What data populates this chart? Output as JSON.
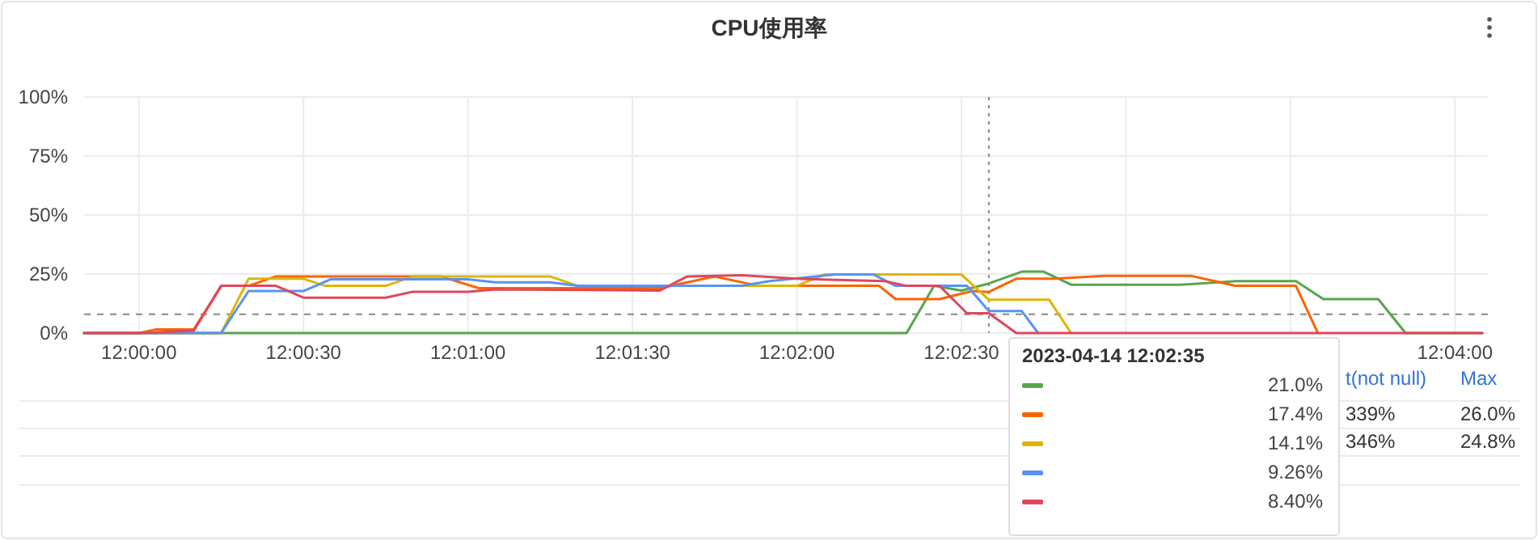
{
  "chart_data": {
    "type": "line",
    "title": "CPU使用率",
    "xlim": [
      "2023-04-14T11:59:50",
      "2023-04-14T12:04:06"
    ],
    "xticks": [
      {
        "value": "2023-04-14T12:00:00",
        "label": "12:00:00"
      },
      {
        "value": "2023-04-14T12:00:30",
        "label": "12:00:30"
      },
      {
        "value": "2023-04-14T12:01:00",
        "label": "12:01:00"
      },
      {
        "value": "2023-04-14T12:01:30",
        "label": "12:01:30"
      },
      {
        "value": "2023-04-14T12:02:00",
        "label": "12:02:00"
      },
      {
        "value": "2023-04-14T12:02:30",
        "label": "12:02:30"
      },
      {
        "value": "2023-04-14T12:03:00",
        "label": null
      },
      {
        "value": "2023-04-14T12:03:30",
        "label": null
      },
      {
        "value": "2023-04-14T12:04:00",
        "label": "12:04:00"
      }
    ],
    "ylim": [
      0,
      100
    ],
    "yticks": [
      {
        "value": 0,
        "label": "0%"
      },
      {
        "value": 25,
        "label": "25%"
      },
      {
        "value": 50,
        "label": "50%"
      },
      {
        "value": 75,
        "label": "75%"
      },
      {
        "value": 100,
        "label": "100%"
      }
    ],
    "grid": true,
    "ref_lines": [
      {
        "axis": "y",
        "value": 8,
        "color": "#888888",
        "line_style": "dashed"
      },
      {
        "axis": "x",
        "value": "2023-04-14T12:02:35",
        "color": "#888888",
        "line_style": "dotted"
      }
    ],
    "series": [
      {
        "color": "#56a64b",
        "x": [
          "2023-04-14T11:59:50",
          "2023-04-14T12:02:20",
          "2023-04-14T12:02:25",
          "2023-04-14T12:02:30",
          "2023-04-14T12:02:35",
          "2023-04-14T12:02:41",
          "2023-04-14T12:02:45",
          "2023-04-14T12:02:50",
          "2023-04-14T12:03:10",
          "2023-04-14T12:03:20",
          "2023-04-14T12:03:31",
          "2023-04-14T12:03:36",
          "2023-04-14T12:03:46",
          "2023-04-14T12:03:51",
          "2023-04-14T12:04:05"
        ],
        "values": [
          0,
          0,
          20,
          18,
          21.0,
          26,
          26,
          20.5,
          20.5,
          22,
          22,
          14.4,
          14.4,
          0,
          0
        ]
      },
      {
        "color": "#fa6400",
        "x": [
          "2023-04-14T11:59:50",
          "2023-04-14T12:00:00",
          "2023-04-14T12:00:03",
          "2023-04-14T12:00:10",
          "2023-04-14T12:00:15",
          "2023-04-14T12:00:20",
          "2023-04-14T12:00:25",
          "2023-04-14T12:00:55",
          "2023-04-14T12:01:02",
          "2023-04-14T12:01:35",
          "2023-04-14T12:01:45",
          "2023-04-14T12:01:53",
          "2023-04-14T12:02:15",
          "2023-04-14T12:02:18",
          "2023-04-14T12:02:26",
          "2023-04-14T12:02:32",
          "2023-04-14T12:02:35",
          "2023-04-14T12:02:40",
          "2023-04-14T12:02:47",
          "2023-04-14T12:02:56",
          "2023-04-14T12:03:12",
          "2023-04-14T12:03:20",
          "2023-04-14T12:03:31",
          "2023-04-14T12:03:35"
        ],
        "values": [
          0,
          0,
          1.5,
          1.5,
          20,
          20,
          24,
          24,
          19,
          19,
          24,
          20,
          20,
          14.4,
          14.4,
          17.8,
          17.4,
          23,
          23,
          24.2,
          24.2,
          20,
          20,
          0
        ]
      },
      {
        "color": "#e0b400",
        "x": [
          "2023-04-14T11:59:50",
          "2023-04-14T12:00:15",
          "2023-04-14T12:00:20",
          "2023-04-14T12:00:30",
          "2023-04-14T12:00:34",
          "2023-04-14T12:00:45",
          "2023-04-14T12:00:50",
          "2023-04-14T12:01:15",
          "2023-04-14T12:01:20",
          "2023-04-14T12:02:00",
          "2023-04-14T12:02:05",
          "2023-04-14T12:02:30",
          "2023-04-14T12:02:35",
          "2023-04-14T12:02:46",
          "2023-04-14T12:02:50"
        ],
        "values": [
          0,
          0,
          23,
          23,
          20,
          20,
          24,
          24,
          20,
          20,
          24.8,
          24.8,
          14.1,
          14.1,
          0
        ]
      },
      {
        "color": "#5794f2",
        "x": [
          "2023-04-14T11:59:50",
          "2023-04-14T12:00:15",
          "2023-04-14T12:00:20",
          "2023-04-14T12:00:30",
          "2023-04-14T12:00:35",
          "2023-04-14T12:01:00",
          "2023-04-14T12:01:05",
          "2023-04-14T12:01:15",
          "2023-04-14T12:01:20",
          "2023-04-14T12:01:50",
          "2023-04-14T12:01:55",
          "2023-04-14T12:02:07",
          "2023-04-14T12:02:14",
          "2023-04-14T12:02:18",
          "2023-04-14T12:02:31",
          "2023-04-14T12:02:35",
          "2023-04-14T12:02:41",
          "2023-04-14T12:02:44"
        ],
        "values": [
          0,
          0,
          17.8,
          17.8,
          22.8,
          22.8,
          21.5,
          21.5,
          20,
          20,
          22,
          24.8,
          24.8,
          20,
          20,
          9.3,
          9.3,
          0
        ]
      },
      {
        "color": "#e0475e",
        "x": [
          "2023-04-14T11:59:50",
          "2023-04-14T12:00:00",
          "2023-04-14T12:00:10",
          "2023-04-14T12:00:15",
          "2023-04-14T12:00:25",
          "2023-04-14T12:00:30",
          "2023-04-14T12:00:45",
          "2023-04-14T12:00:50",
          "2023-04-14T12:01:00",
          "2023-04-14T12:01:05",
          "2023-04-14T12:01:35",
          "2023-04-14T12:01:40",
          "2023-04-14T12:01:50",
          "2023-04-14T12:02:00",
          "2023-04-14T12:02:16",
          "2023-04-14T12:02:20",
          "2023-04-14T12:02:26",
          "2023-04-14T12:02:31",
          "2023-04-14T12:02:35",
          "2023-04-14T12:02:40",
          "2023-04-14T12:04:05"
        ],
        "values": [
          0,
          0,
          1,
          20,
          20,
          15,
          15,
          17.5,
          17.5,
          18.5,
          18,
          24,
          24.5,
          23,
          22,
          20,
          20,
          8.4,
          8.4,
          0,
          0
        ]
      }
    ],
    "annotations": [
      "2023-04-14 12:02:35",
      "21.0%",
      "17.4%",
      "14.1%",
      "9.26%",
      "8.40%",
      "t(not null)",
      "Max",
      "339%",
      "26.0%",
      "346%",
      "24.8%"
    ]
  }
}
